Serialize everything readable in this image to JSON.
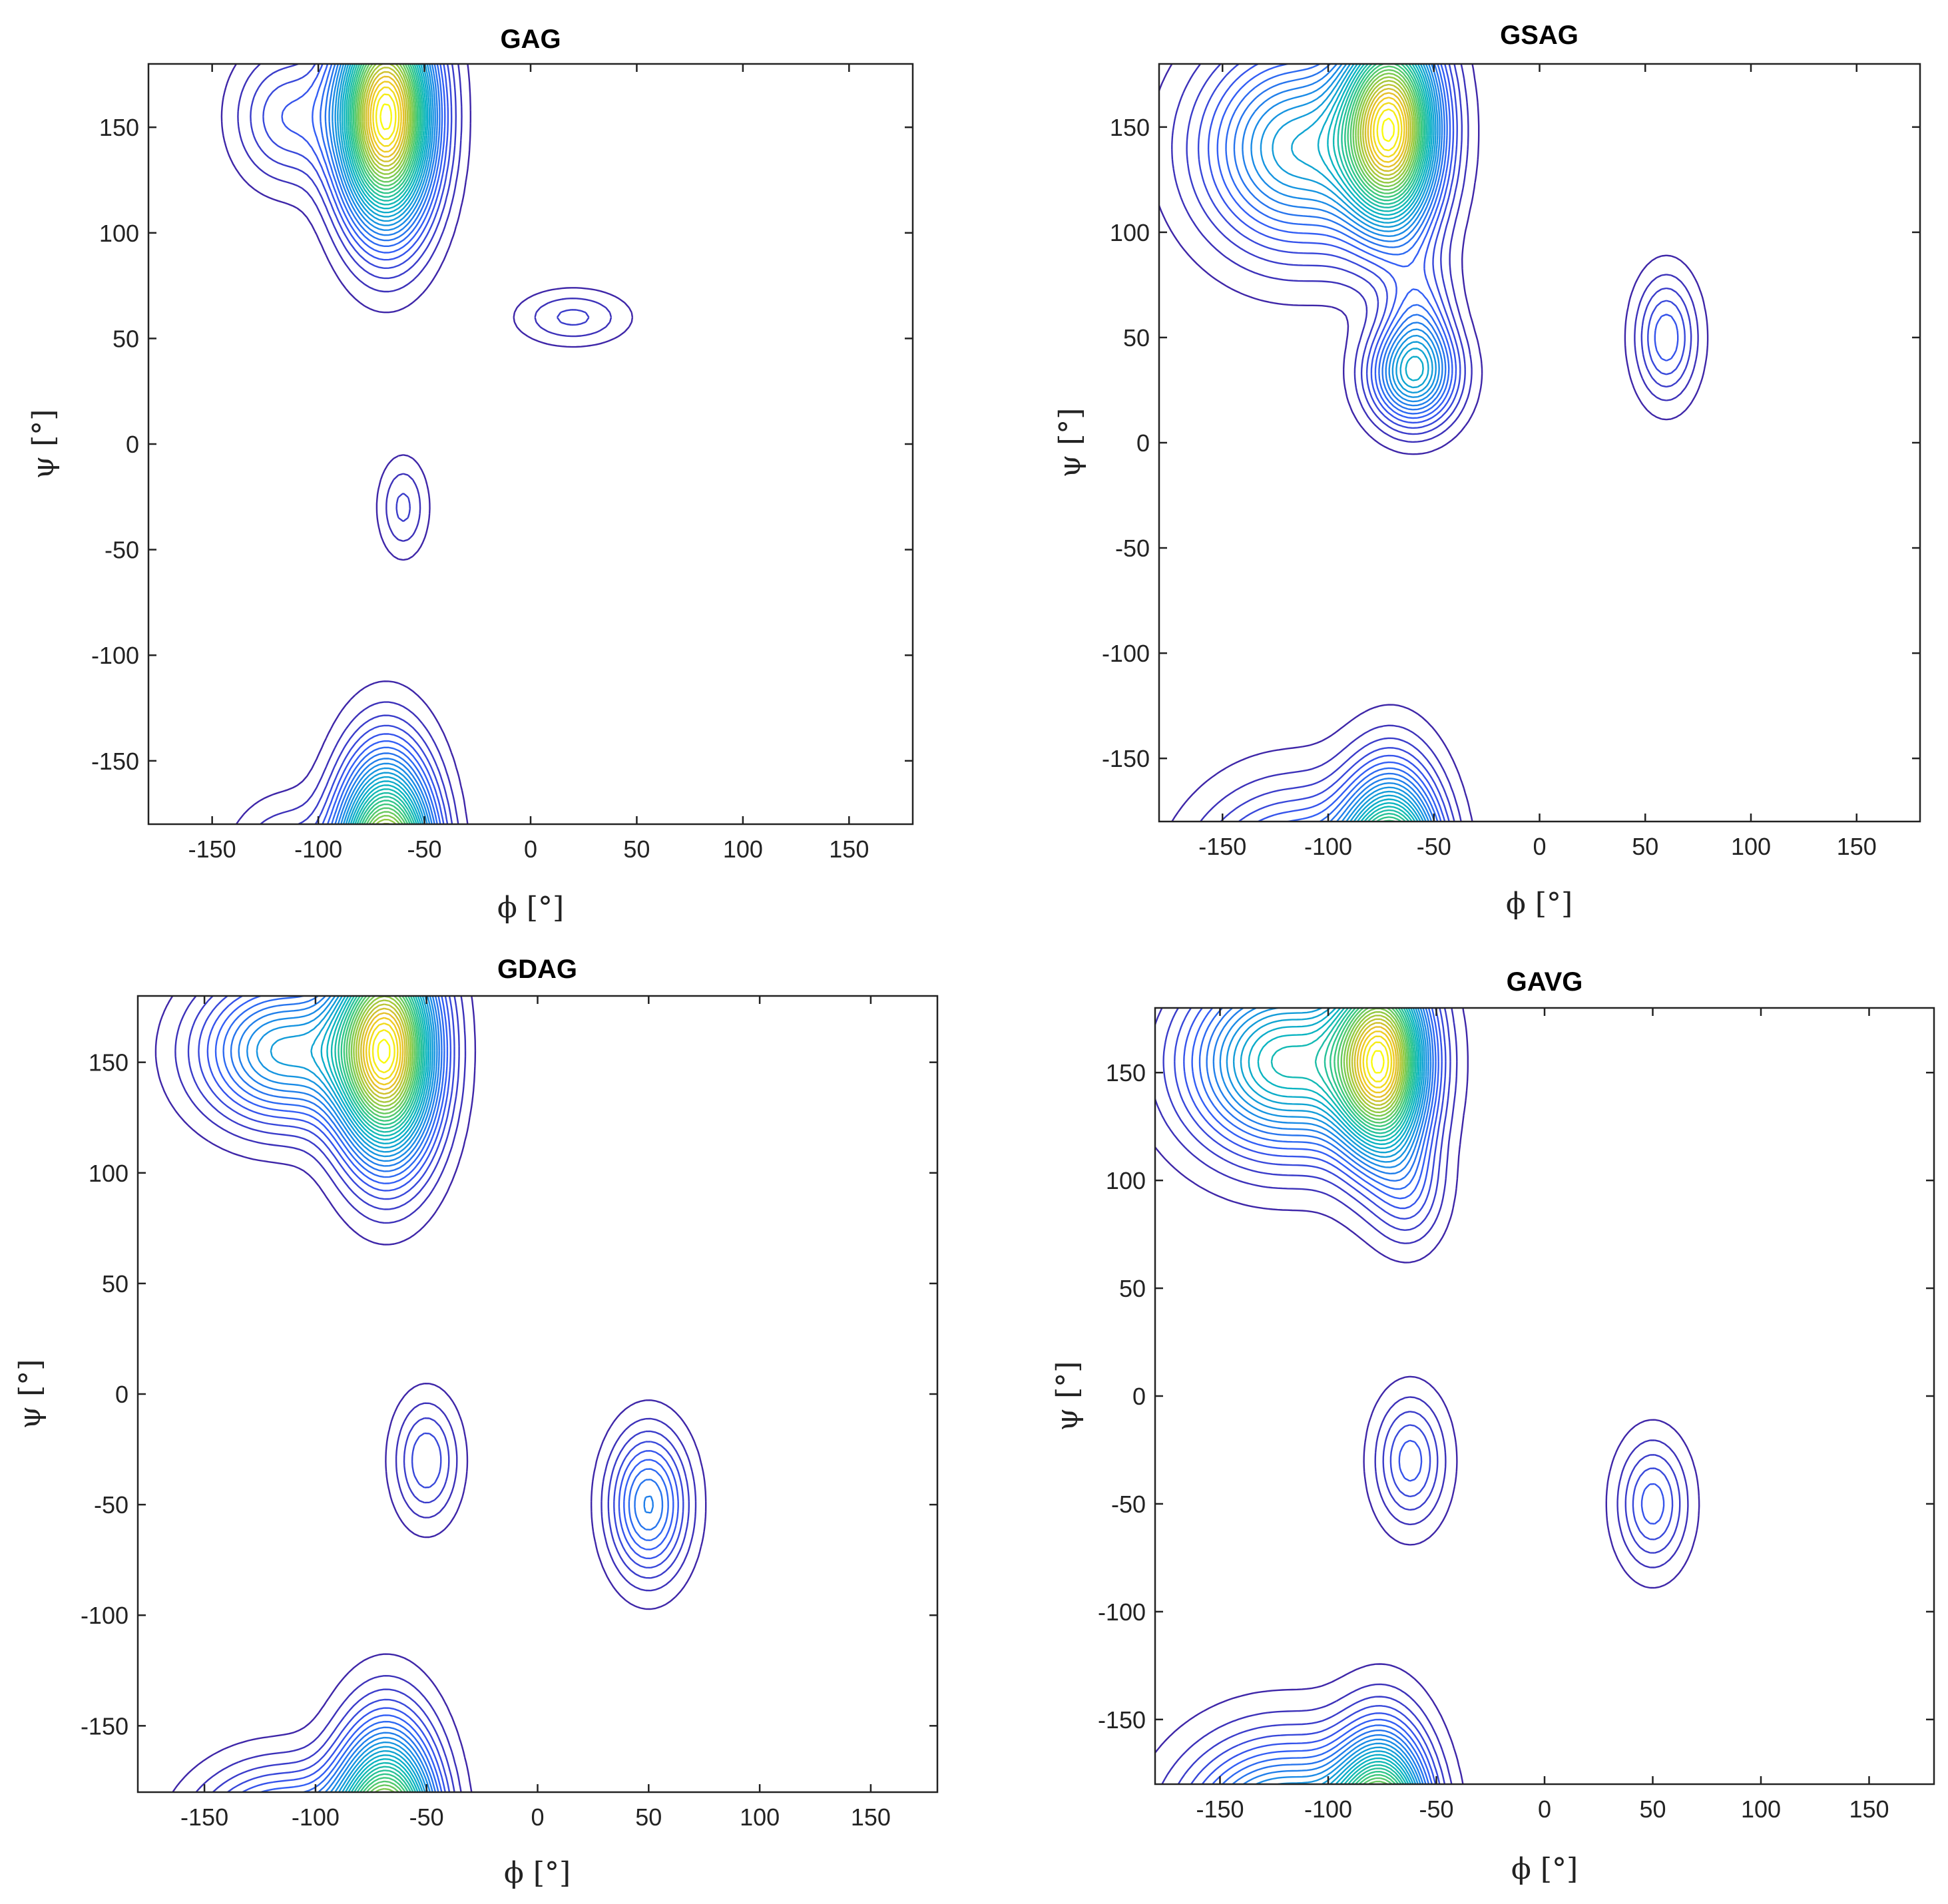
{
  "chart_data": [
    {
      "type": "contour",
      "title": "GAG",
      "xlabel": "ϕ  [°]",
      "ylabel": "ψ  [°]",
      "xlim": [
        -180,
        180
      ],
      "ylim": [
        -180,
        180
      ],
      "xticks": [
        "-150",
        "-100",
        "-50",
        "0",
        "50",
        "100",
        "150"
      ],
      "yticks": [
        "150",
        "100",
        "50",
        "0",
        "-50",
        "-100",
        "-150"
      ],
      "grid": false,
      "peaks": [
        {
          "phi": -68,
          "psi": 155,
          "sphi": 15,
          "spsi": 35,
          "amp": 1.0
        },
        {
          "phi": -68,
          "psi": -205,
          "sphi": 15,
          "spsi": 35,
          "amp": 1.0
        },
        {
          "phi": -115,
          "psi": 155,
          "sphi": 17,
          "spsi": 22,
          "amp": 0.15
        },
        {
          "phi": -115,
          "psi": -205,
          "sphi": 17,
          "spsi": 22,
          "amp": 0.15
        },
        {
          "phi": 20,
          "psi": 60,
          "sphi": 18,
          "spsi": 9,
          "amp": 0.1
        },
        {
          "phi": -60,
          "psi": -30,
          "sphi": 8,
          "spsi": 16,
          "amp": 0.1
        }
      ]
    },
    {
      "type": "contour",
      "title": "GSAG",
      "xlabel": "ϕ  [°]",
      "ylabel": "ψ  [°]",
      "xlim": [
        -180,
        180
      ],
      "ylim": [
        -180,
        180
      ],
      "xticks": [
        "-150",
        "-100",
        "-50",
        "0",
        "50",
        "100",
        "150"
      ],
      "yticks": [
        "150",
        "100",
        "50",
        "0",
        "-50",
        "-100",
        "-150"
      ],
      "grid": false,
      "peaks": [
        {
          "phi": -70,
          "psi": 150,
          "sphi": 15,
          "spsi": 32,
          "amp": 1.0
        },
        {
          "phi": -70,
          "psi": -210,
          "sphi": 15,
          "spsi": 32,
          "amp": 1.0
        },
        {
          "phi": -115,
          "psi": 140,
          "sphi": 30,
          "spsi": 32,
          "amp": 0.45
        },
        {
          "phi": -115,
          "psi": -220,
          "sphi": 30,
          "spsi": 32,
          "amp": 0.45
        },
        {
          "phi": -60,
          "psi": 32,
          "sphi": 14,
          "spsi": 16,
          "amp": 0.42
        },
        {
          "phi": -57,
          "psi": 58,
          "sphi": 11,
          "spsi": 22,
          "amp": 0.18
        },
        {
          "phi": 60,
          "psi": 50,
          "sphi": 10,
          "spsi": 20,
          "amp": 0.2
        }
      ]
    },
    {
      "type": "contour",
      "title": "GDAG",
      "xlabel": "ϕ  [°]",
      "ylabel": "ψ  [°]",
      "xlim": [
        -180,
        180
      ],
      "ylim": [
        -180,
        180
      ],
      "xticks": [
        "-150",
        "-100",
        "-50",
        "0",
        "50",
        "100",
        "150"
      ],
      "yticks": [
        "150",
        "100",
        "50",
        "0",
        "-50",
        "-100",
        "-150"
      ],
      "grid": false,
      "peaks": [
        {
          "phi": -68,
          "psi": 155,
          "sphi": 15,
          "spsi": 33,
          "amp": 1.0
        },
        {
          "phi": -68,
          "psi": -205,
          "sphi": 15,
          "spsi": 33,
          "amp": 1.0
        },
        {
          "phi": -115,
          "psi": 155,
          "sphi": 25,
          "spsi": 22,
          "amp": 0.4
        },
        {
          "phi": -115,
          "psi": -205,
          "sphi": 25,
          "spsi": 22,
          "amp": 0.4
        },
        {
          "phi": -50,
          "psi": -30,
          "sphi": 10,
          "spsi": 19,
          "amp": 0.16
        },
        {
          "phi": 50,
          "psi": -50,
          "sphi": 12,
          "spsi": 22,
          "amp": 0.3
        }
      ]
    },
    {
      "type": "contour",
      "title": "GAVG",
      "xlabel": "ϕ  [°]",
      "ylabel": "ψ  [°]",
      "xlim": [
        -180,
        180
      ],
      "ylim": [
        -180,
        180
      ],
      "xticks": [
        "-150",
        "-100",
        "-50",
        "0",
        "50",
        "100",
        "150"
      ],
      "yticks": [
        "150",
        "100",
        "50",
        "0",
        "-50",
        "-100",
        "-150"
      ],
      "grid": false,
      "peaks": [
        {
          "phi": -75,
          "psi": 155,
          "sphi": 14,
          "spsi": 30,
          "amp": 1.0
        },
        {
          "phi": -75,
          "psi": -205,
          "sphi": 14,
          "spsi": 30,
          "amp": 1.0
        },
        {
          "phi": -120,
          "psi": 155,
          "sphi": 30,
          "spsi": 28,
          "amp": 0.6
        },
        {
          "phi": -120,
          "psi": -205,
          "sphi": 30,
          "spsi": 28,
          "amp": 0.6
        },
        {
          "phi": -62,
          "psi": 95,
          "sphi": 11,
          "spsi": 18,
          "amp": 0.13
        },
        {
          "phi": -62,
          "psi": -30,
          "sphi": 11,
          "spsi": 20,
          "amp": 0.2
        },
        {
          "phi": 50,
          "psi": -50,
          "sphi": 11,
          "spsi": 20,
          "amp": 0.2
        }
      ]
    }
  ]
}
